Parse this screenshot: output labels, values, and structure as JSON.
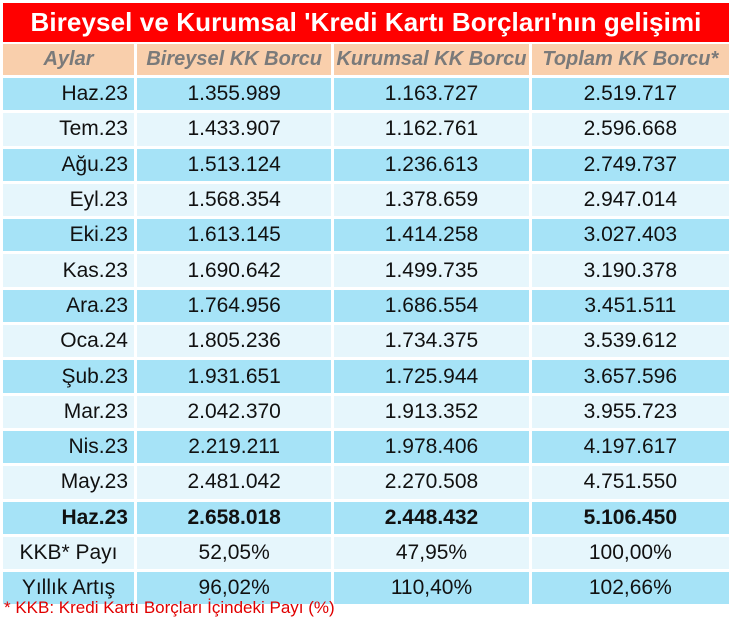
{
  "title": "Bireysel ve Kurumsal 'Kredi Kartı Borçları'nın gelişimi",
  "columns": [
    "Aylar",
    "Bireysel KK Borcu",
    "Kurumsal KK Borcu",
    "Toplam KK Borcu*"
  ],
  "rows": [
    {
      "month": "Haz.23",
      "individual": "1.355.989",
      "corporate": "1.163.727",
      "total": "2.519.717"
    },
    {
      "month": "Tem.23",
      "individual": "1.433.907",
      "corporate": "1.162.761",
      "total": "2.596.668"
    },
    {
      "month": "Ağu.23",
      "individual": "1.513.124",
      "corporate": "1.236.613",
      "total": "2.749.737"
    },
    {
      "month": "Eyl.23",
      "individual": "1.568.354",
      "corporate": "1.378.659",
      "total": "2.947.014"
    },
    {
      "month": "Eki.23",
      "individual": "1.613.145",
      "corporate": "1.414.258",
      "total": "3.027.403"
    },
    {
      "month": "Kas.23",
      "individual": "1.690.642",
      "corporate": "1.499.735",
      "total": "3.190.378"
    },
    {
      "month": "Ara.23",
      "individual": "1.764.956",
      "corporate": "1.686.554",
      "total": "3.451.511"
    },
    {
      "month": "Oca.24",
      "individual": "1.805.236",
      "corporate": "1.734.375",
      "total": "3.539.612"
    },
    {
      "month": "Şub.23",
      "individual": "1.931.651",
      "corporate": "1.725.944",
      "total": "3.657.596"
    },
    {
      "month": "Mar.23",
      "individual": "2.042.370",
      "corporate": "1.913.352",
      "total": "3.955.723"
    },
    {
      "month": "Nis.23",
      "individual": "2.219.211",
      "corporate": "1.978.406",
      "total": "4.197.617"
    },
    {
      "month": "May.23",
      "individual": "2.481.042",
      "corporate": "2.270.508",
      "total": "4.751.550"
    },
    {
      "month": "Haz.23",
      "individual": "2.658.018",
      "corporate": "2.448.432",
      "total": "5.106.450",
      "bold": true
    }
  ],
  "summary": [
    {
      "label": "KKB* Payı",
      "individual": "52,05%",
      "corporate": "47,95%",
      "total": "100,00%"
    },
    {
      "label": "Yıllık Artış",
      "individual": "96,02%",
      "corporate": "110,40%",
      "total": "102,66%"
    }
  ],
  "footnote": "* KKB: Kredi Kartı Borçları İçindeki Payı (%)",
  "colors": {
    "title_bg": "#ff0000",
    "header_bg": "#f9cfac",
    "row_dark": "#a6e3f7",
    "row_light": "#e6f6fc",
    "footnote": "#e00000"
  }
}
